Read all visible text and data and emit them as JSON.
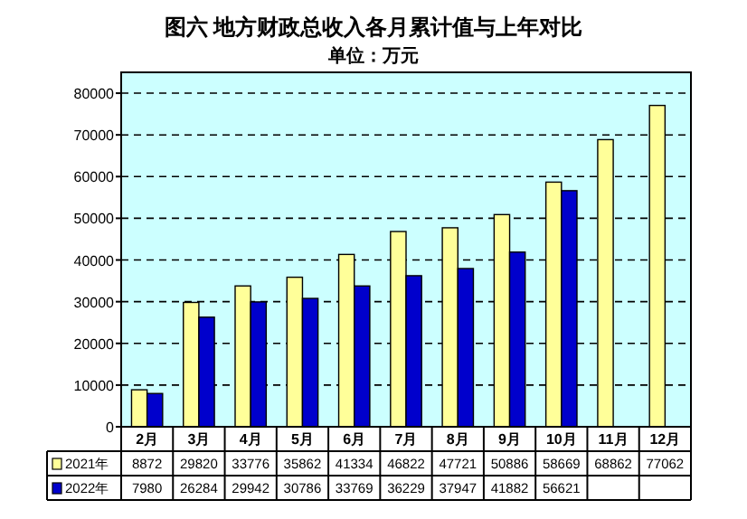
{
  "chart_data": {
    "type": "bar",
    "title": "图六  地方财政总收入各月累计值与上年对比",
    "subtitle": "单位：万元",
    "categories": [
      "2月",
      "3月",
      "4月",
      "5月",
      "6月",
      "7月",
      "8月",
      "9月",
      "10月",
      "11月",
      "12月"
    ],
    "series": [
      {
        "name": "2021年",
        "color": "#ffff99",
        "values": [
          8872,
          29820,
          33776,
          35862,
          41334,
          46822,
          47721,
          50886,
          58669,
          68862,
          77062
        ]
      },
      {
        "name": "2022年",
        "color": "#0000cc",
        "values": [
          7980,
          26284,
          29942,
          30786,
          33769,
          36229,
          37947,
          41882,
          56621,
          null,
          null
        ]
      }
    ],
    "ylim": [
      0,
      85000
    ],
    "yticks": [
      0,
      10000,
      20000,
      30000,
      40000,
      50000,
      60000,
      70000,
      80000
    ],
    "grid": "y",
    "legend": "bottom",
    "data_labels": true
  }
}
